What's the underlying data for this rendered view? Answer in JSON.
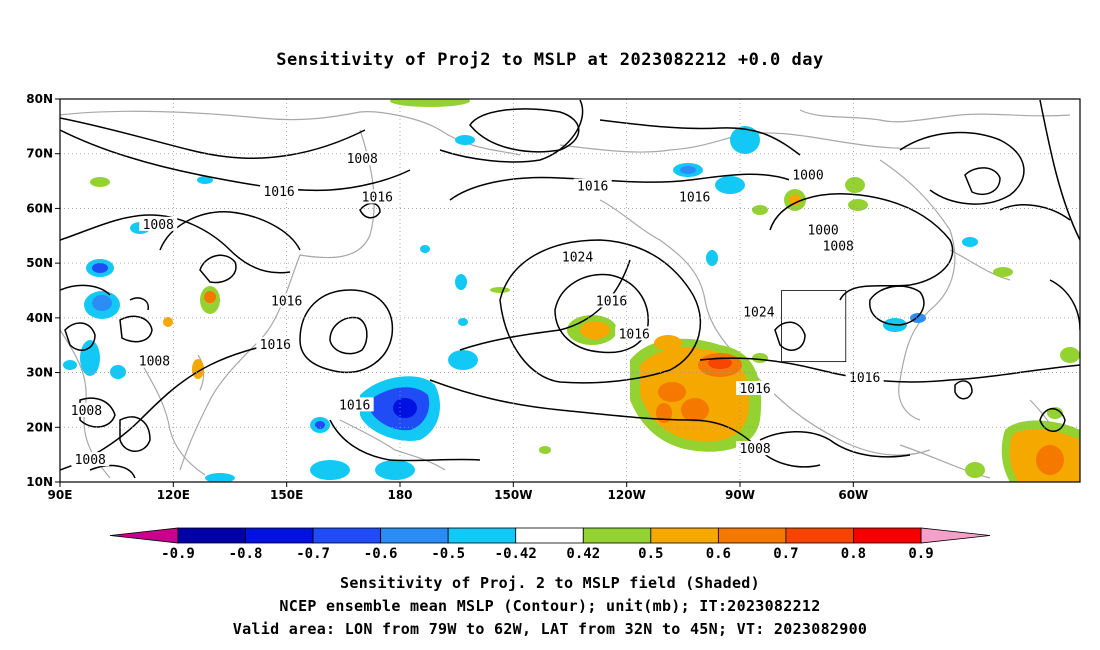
{
  "title": "Sensitivity of Proj2 to MSLP at 2023082212 +0.0 day",
  "lat_labels": [
    "80N",
    "70N",
    "60N",
    "50N",
    "40N",
    "30N",
    "20N",
    "10N"
  ],
  "lon_labels": [
    "90E",
    "120E",
    "150E",
    "180",
    "150W",
    "120W",
    "90W",
    "60W"
  ],
  "contour_labels": [
    {
      "text": "1008",
      "lon": 170,
      "lat": 69
    },
    {
      "text": "1016",
      "lon": 174,
      "lat": 62
    },
    {
      "text": "1016",
      "lon": 148,
      "lat": 63
    },
    {
      "text": "1008",
      "lon": 116,
      "lat": 57
    },
    {
      "text": "1016",
      "lon": 150,
      "lat": 43
    },
    {
      "text": "1016",
      "lon": 147,
      "lat": 35
    },
    {
      "text": "1008",
      "lon": 115,
      "lat": 32
    },
    {
      "text": "1008",
      "lon": 97,
      "lat": 23
    },
    {
      "text": "1008",
      "lon": 98,
      "lat": 14
    },
    {
      "text": "1016",
      "lon": 168,
      "lat": 24
    },
    {
      "text": "1024",
      "lon": -133,
      "lat": 51
    },
    {
      "text": "1016",
      "lon": -129,
      "lat": 64
    },
    {
      "text": "1016",
      "lon": -124,
      "lat": 43
    },
    {
      "text": "1016",
      "lon": -118,
      "lat": 37
    },
    {
      "text": "1016",
      "lon": -102,
      "lat": 62
    },
    {
      "text": "1000",
      "lon": -72,
      "lat": 66
    },
    {
      "text": "1000",
      "lon": -68,
      "lat": 56
    },
    {
      "text": "1008",
      "lon": -64,
      "lat": 53
    },
    {
      "text": "1024",
      "lon": -85,
      "lat": 41
    },
    {
      "text": "1016",
      "lon": -86,
      "lat": 27
    },
    {
      "text": "1008",
      "lon": -86,
      "lat": 16
    },
    {
      "text": "1016",
      "lon": -57,
      "lat": 29
    }
  ],
  "valid_area": {
    "lon_min": -79,
    "lon_max": -62,
    "lat_min": 32,
    "lat_max": 45
  },
  "colorbar": {
    "labels": [
      "-0.9",
      "-0.8",
      "-0.7",
      "-0.6",
      "-0.5",
      "-0.42",
      "0.42",
      "0.5",
      "0.6",
      "0.7",
      "0.8",
      "0.9"
    ],
    "colors": [
      "#0000a8",
      "#0012e0",
      "#1f4cf5",
      "#2b8cf5",
      "#12c8f5",
      "#ffffff",
      "#94d232",
      "#f5a800",
      "#f57800",
      "#f54500",
      "#f50000"
    ],
    "left_arrow_color": "#c8008c",
    "right_arrow_color": "#f5a0c8"
  },
  "captions": [
    "Sensitivity of Proj. 2 to MSLP field (Shaded)",
    "NCEP ensemble mean MSLP (Contour); unit(mb); IT:2023082212",
    "Valid area: LON from 79W to 62W, LAT from 32N to 45N; VT: 2023082900"
  ]
}
